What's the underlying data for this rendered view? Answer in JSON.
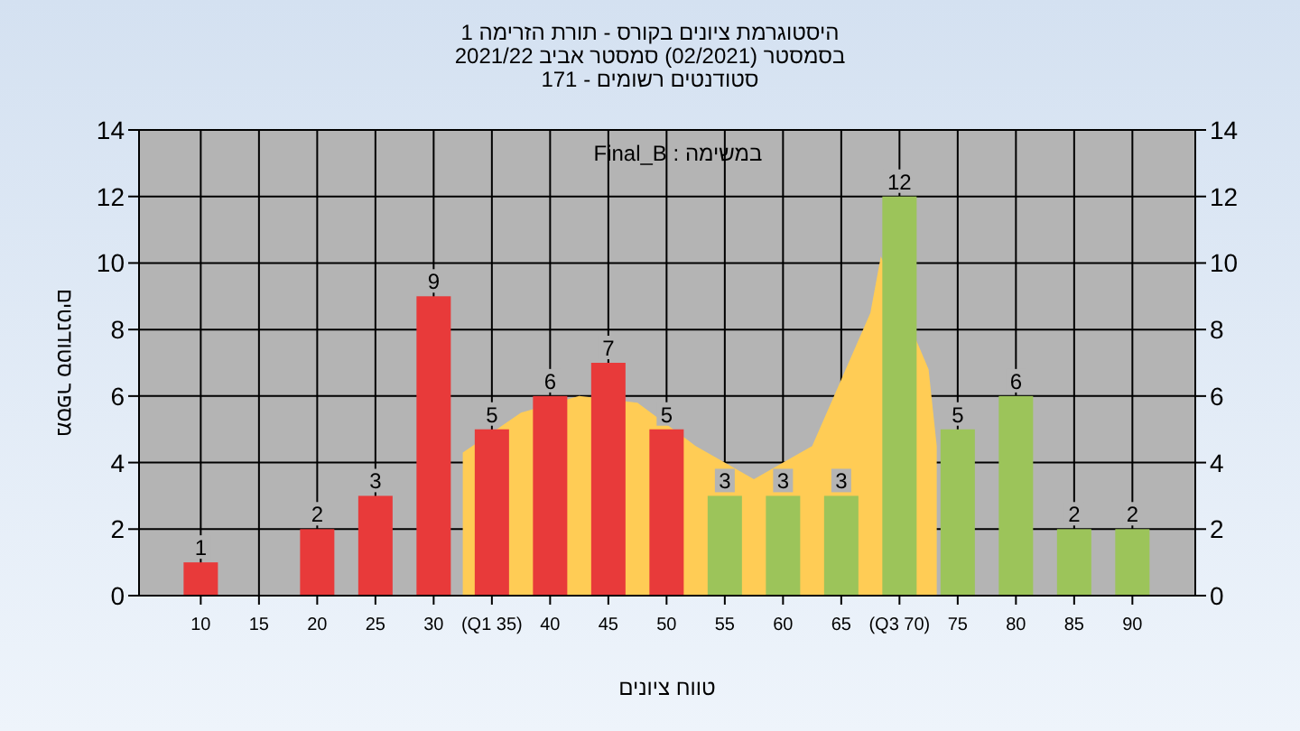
{
  "chart_data": {
    "type": "bar",
    "title": "היסטוגרמת ציונים בקורס - תורת הזרימה 1",
    "subtitle": "בסמסטר  (02/2021)  סמסטר אביב 2021/22\nסטודנטים רשומים - 171",
    "xlabel": "טווח ציונים",
    "ylabel": "מספר סטודנטים",
    "annotations": [
      "במשימה : Final_B"
    ],
    "x": [
      10,
      15,
      20,
      25,
      30,
      35,
      40,
      45,
      50,
      55,
      60,
      65,
      70,
      75,
      80,
      85,
      90
    ],
    "series": [
      {
        "type": "area",
        "color": "#ffcc55",
        "x": [
          32.5,
          37.5,
          42.5,
          47.5,
          52.5,
          57.5,
          62.5,
          67.5,
          68.4,
          72.5,
          73.2
        ],
        "values": [
          4.3,
          5.5,
          6,
          5.8,
          4.5,
          3.5,
          4.5,
          8.5,
          10.2,
          6.8,
          4.5
        ]
      },
      {
        "values": [
          1,
          0,
          2,
          3,
          9,
          5,
          6,
          7,
          5,
          3,
          3,
          3,
          12,
          5,
          6,
          2,
          2
        ],
        "colors": [
          "#e83a3a",
          "#e83a3a",
          "#e83a3a",
          "#e83a3a",
          "#e83a3a",
          "#e83a3a",
          "#e83a3a",
          "#e83a3a",
          "#e83a3a",
          "#9cc45a",
          "#9cc45a",
          "#9cc45a",
          "#9cc45a",
          "#9cc45a",
          "#9cc45a",
          "#9cc45a",
          "#9cc45a"
        ],
        "value_labels": [
          "1",
          null,
          "2",
          "3",
          "9",
          "5",
          "6",
          "7",
          "5",
          "3",
          "3",
          "3",
          "12",
          "5",
          "6",
          "2",
          "2"
        ]
      }
    ],
    "xlim": [
      4.7,
      95.4
    ],
    "xticks": [
      10,
      15,
      20,
      25,
      30,
      {
        "value": 35,
        "label": "(Q1 35)"
      },
      40,
      45,
      50,
      55,
      60,
      65,
      {
        "value": 70,
        "label": "(Q3 70)"
      },
      75,
      80,
      85,
      90
    ],
    "ylim": [
      0,
      14
    ],
    "yticks": [
      0,
      2,
      4,
      6,
      8,
      10,
      12,
      14
    ],
    "y2lim": [
      0,
      14
    ],
    "y2ticks": [
      0,
      2,
      4,
      6,
      8,
      10,
      12,
      14
    ],
    "grid": true
  }
}
